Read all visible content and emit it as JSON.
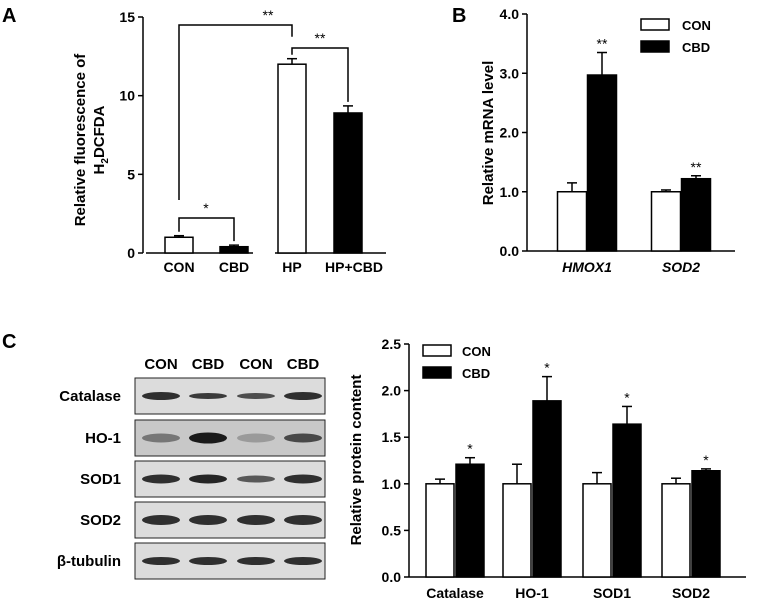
{
  "figure": {
    "panel_labels": [
      "A",
      "B",
      "C"
    ],
    "colors": {
      "CON": "#ffffff",
      "CBD": "#000000",
      "HP": "#ffffff",
      "HP+CBD": "#000000",
      "blot_bg": "#dcdcdc",
      "band": "#1a1a1a"
    }
  },
  "chart_data": [
    {
      "panel": "A",
      "type": "bar",
      "categories": [
        "CON",
        "CBD",
        "HP",
        "HP+CBD"
      ],
      "values": [
        1.0,
        0.4,
        12.0,
        8.9
      ],
      "errors": [
        0.1,
        0.1,
        0.35,
        0.45
      ],
      "ylabel_line1": "Relative fluorescence of",
      "ylabel_line2_main": "H",
      "ylabel_line2_sub": "2",
      "ylabel_line2_rest": "DCFDA",
      "ylim": [
        0,
        15
      ],
      "yticks": [
        0,
        5,
        10,
        15
      ],
      "significance": [
        {
          "label": "*",
          "between": [
            0,
            1
          ]
        },
        {
          "label": "**",
          "between": [
            2,
            3
          ]
        },
        {
          "label": "**",
          "between": [
            0,
            2
          ]
        }
      ]
    },
    {
      "panel": "B",
      "type": "bar",
      "categories": [
        "HMOX1",
        "SOD2"
      ],
      "series": [
        {
          "name": "CON",
          "values": [
            1.0,
            1.0
          ],
          "errors": [
            0.15,
            0.03
          ]
        },
        {
          "name": "CBD",
          "values": [
            2.97,
            1.22
          ],
          "errors": [
            0.38,
            0.05
          ]
        }
      ],
      "ylabel": "Relative mRNA level",
      "ylim": [
        0,
        4
      ],
      "yticks": [
        "0.0",
        "1.0",
        "2.0",
        "3.0",
        "4.0"
      ],
      "significance": [
        "**",
        "**"
      ],
      "legend": "top-right"
    },
    {
      "panel": "C",
      "type": "bar",
      "categories": [
        "Catalase",
        "HO-1",
        "SOD1",
        "SOD2"
      ],
      "series": [
        {
          "name": "CON",
          "values": [
            1.0,
            1.0,
            1.0,
            1.0
          ],
          "errors": [
            0.05,
            0.21,
            0.12,
            0.06
          ]
        },
        {
          "name": "CBD",
          "values": [
            1.21,
            1.89,
            1.64,
            1.14
          ],
          "errors": [
            0.07,
            0.26,
            0.19,
            0.02
          ]
        }
      ],
      "ylabel": "Relative protein content",
      "ylim": [
        0,
        2.5
      ],
      "yticks": [
        "0.0",
        "0.5",
        "1.0",
        "1.5",
        "2.0",
        "2.5"
      ],
      "significance": [
        "*",
        "*",
        "*",
        "*"
      ],
      "legend": "top-left"
    }
  ],
  "blot": {
    "lanes": [
      "CON",
      "CBD",
      "CON",
      "CBD"
    ],
    "rows": [
      "Catalase",
      "HO-1",
      "SOD1",
      "SOD2",
      "β-tubulin"
    ]
  }
}
